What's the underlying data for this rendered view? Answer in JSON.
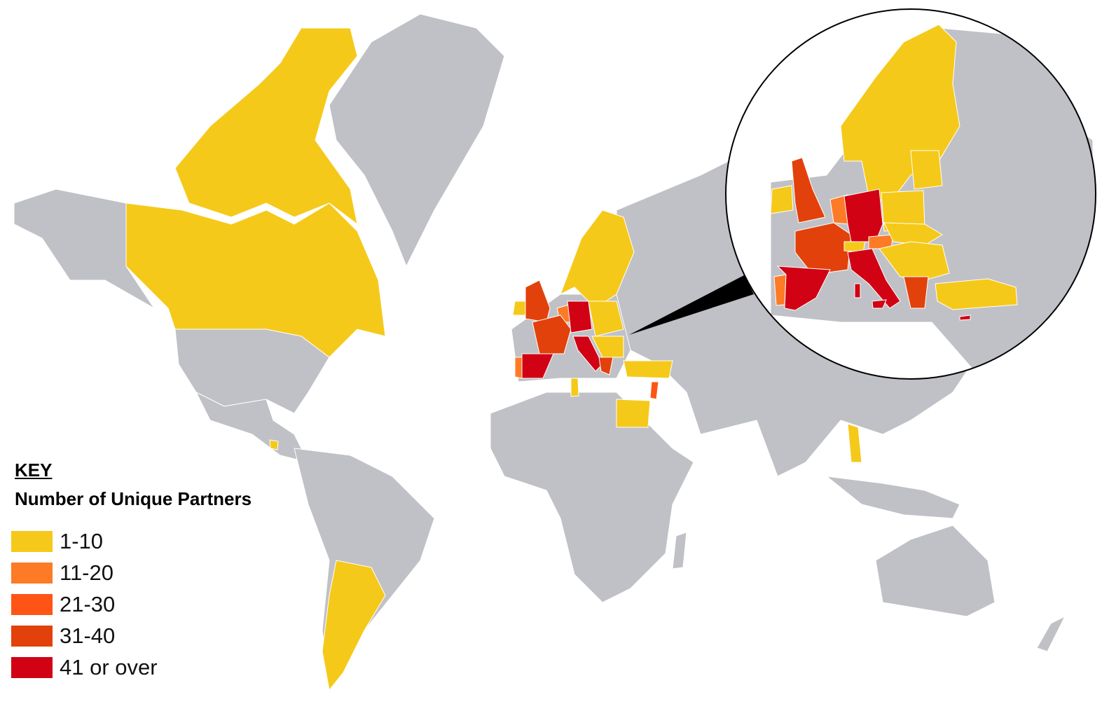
{
  "legend": {
    "title": "KEY",
    "subtitle": "Number of Unique Partners",
    "items": [
      {
        "label": "1-10",
        "color": "#f5c919"
      },
      {
        "label": "11-20",
        "color": "#fd7b26"
      },
      {
        "label": "21-30",
        "color": "#fe5516"
      },
      {
        "label": "31-40",
        "color": "#e3410b"
      },
      {
        "label": "41 or over",
        "color": "#d10214"
      }
    ]
  },
  "colors": {
    "no_partners": "#c0c1c6",
    "inset_border": "#000000"
  },
  "inset": {
    "region": "Europe",
    "shape": "circle"
  }
}
